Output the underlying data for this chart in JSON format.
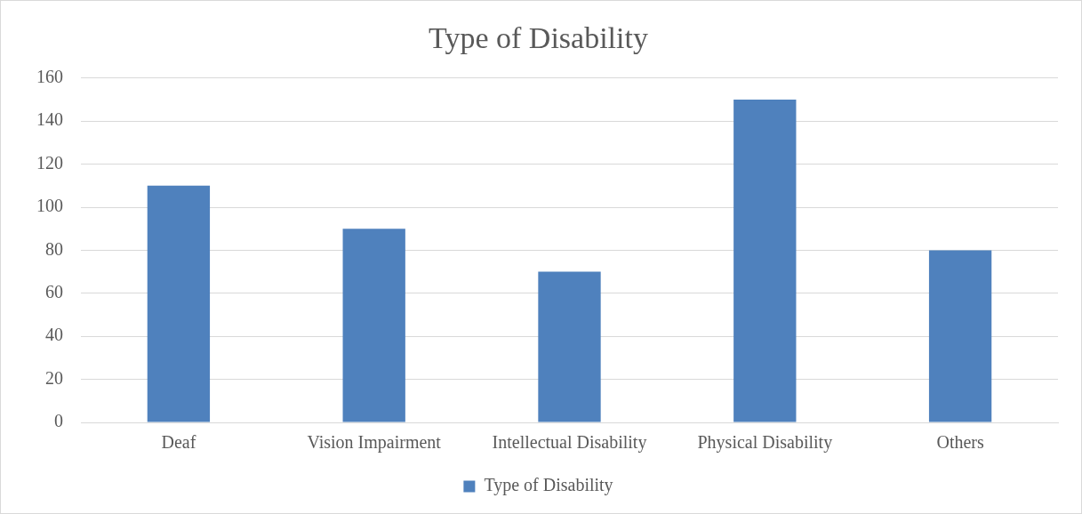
{
  "chart_data": {
    "type": "bar",
    "title": "Type of Disability",
    "categories": [
      "Deaf",
      "Vision Impairment",
      "Intellectual Disability",
      "Physical Disability",
      "Others"
    ],
    "series": [
      {
        "name": "Type of Disability",
        "color": "#4f81bd",
        "values": [
          110,
          90,
          70,
          150,
          80
        ]
      }
    ],
    "ylim": [
      0,
      160
    ],
    "yticks": [
      0,
      20,
      40,
      60,
      80,
      100,
      120,
      140,
      160
    ],
    "grid": "y",
    "legend": "bottom"
  }
}
